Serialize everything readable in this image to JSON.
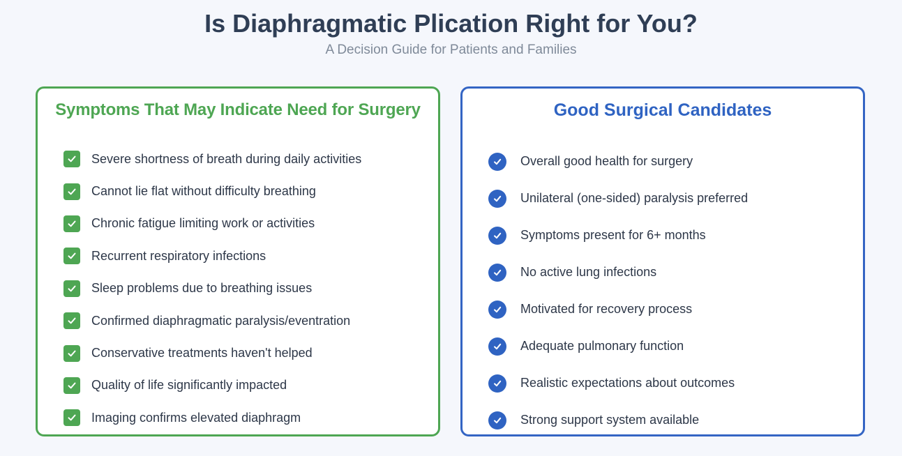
{
  "header": {
    "title": "Is Diaphragmatic Plication Right for You?",
    "subtitle": "A Decision Guide for Patients and Families"
  },
  "symptoms_panel": {
    "title": "Symptoms That May Indicate Need for Surgery",
    "icon": "check-square-icon",
    "accent_color": "#4ea653",
    "items": [
      "Severe shortness of breath during daily activities",
      "Cannot lie flat without difficulty breathing",
      "Chronic fatigue limiting work or activities",
      "Recurrent respiratory infections",
      "Sleep problems due to breathing issues",
      "Confirmed diaphragmatic paralysis/eventration",
      "Conservative treatments haven't helped",
      "Quality of life significantly impacted",
      "Imaging confirms elevated diaphragm"
    ]
  },
  "candidates_panel": {
    "title": "Good Surgical Candidates",
    "icon": "check-circle-icon",
    "accent_color": "#2f63c2",
    "items": [
      "Overall good health for surgery",
      "Unilateral (one-sided) paralysis preferred",
      "Symptoms present for 6+ months",
      "No active lung infections",
      "Motivated for recovery process",
      "Adequate pulmonary function",
      "Realistic expectations about outcomes",
      "Strong support system available"
    ]
  }
}
